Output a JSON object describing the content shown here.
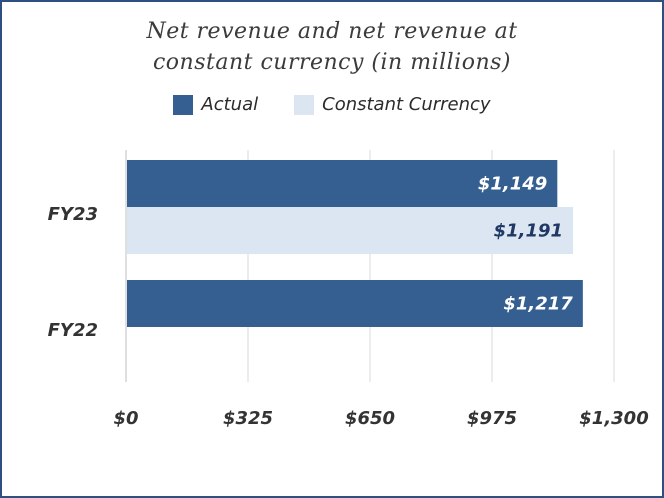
{
  "chart_data": {
    "type": "bar",
    "orientation": "horizontal",
    "title_line1": "Net revenue and net revenue at",
    "title_line2": "constant currency (in millions)",
    "categories": [
      "FY23",
      "FY22"
    ],
    "series": [
      {
        "name": "Actual",
        "color": "#365f91",
        "values": [
          1149,
          1217
        ],
        "labels": [
          "$1,149",
          "$1,217"
        ]
      },
      {
        "name": "Constant Currency",
        "color": "#dce6f2",
        "values": [
          1191,
          null
        ],
        "labels": [
          "$1,191",
          ""
        ]
      }
    ],
    "xlim": [
      0,
      1300
    ],
    "x_ticks": [
      0,
      325,
      650,
      975,
      1300
    ],
    "x_tick_labels": [
      "$0",
      "$325",
      "$650",
      "$975",
      "$1,300"
    ],
    "grid": "vertical",
    "legend_position": "top"
  }
}
